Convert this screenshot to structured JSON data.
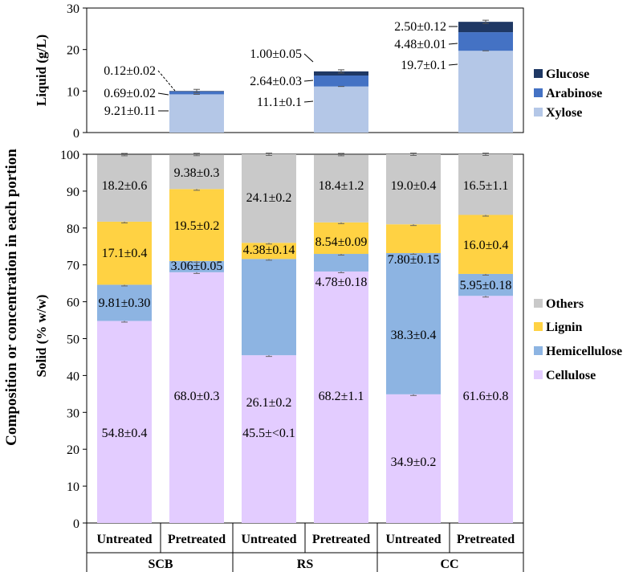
{
  "figure": {
    "ylabel_outer": "Composition or concentration in each portion",
    "colors": {
      "glucose": "#1f3864",
      "arabinose": "#4472c4",
      "xylose": "#b4c7e7",
      "others": "#c9c9c9",
      "lignin": "#ffd243",
      "hemicellulose": "#8db4e2",
      "cellulose": "#e3ccff"
    }
  },
  "chart_data": [
    {
      "type": "bar",
      "stacked": true,
      "ylabel": "Liquid (g/L)",
      "ylim": [
        0,
        30
      ],
      "yticks": [
        0,
        10,
        20,
        30
      ],
      "categories": [
        "SCB Pretreated",
        "RS Pretreated",
        "CC Pretreated"
      ],
      "series": [
        {
          "name": "Xylose",
          "key": "xylose",
          "values": [
            9.21,
            11.1,
            19.7
          ],
          "labels": [
            "9.21±0.11",
            "11.1±0.1",
            "19.7±0.1"
          ]
        },
        {
          "name": "Arabinose",
          "key": "arabinose",
          "values": [
            0.69,
            2.64,
            4.48
          ],
          "labels": [
            "0.69±0.02",
            "2.64±0.03",
            "4.48±0.01"
          ]
        },
        {
          "name": "Glucose",
          "key": "glucose",
          "values": [
            0.12,
            1.0,
            2.5
          ],
          "labels": [
            "0.12±0.02",
            "1.00±0.05",
            "2.50±0.12"
          ]
        }
      ],
      "legend": [
        "Glucose",
        "Arabinose",
        "Xylose"
      ]
    },
    {
      "type": "bar",
      "stacked": true,
      "ylabel": "Solid  (% w/w)",
      "ylim": [
        0,
        100
      ],
      "yticks": [
        0,
        10,
        20,
        30,
        40,
        50,
        60,
        70,
        80,
        90,
        100
      ],
      "groups": [
        "SCB",
        "RS",
        "CC"
      ],
      "categories": [
        "Untreated",
        "Pretreated",
        "Untreated",
        "Pretreated",
        "Untreated",
        "Pretreated"
      ],
      "series": [
        {
          "name": "Cellulose",
          "key": "cellulose",
          "values": [
            54.8,
            68.0,
            45.5,
            68.2,
            34.9,
            61.6
          ],
          "labels": [
            "54.8±0.4",
            "68.0±0.3",
            "45.5±<0.1",
            "68.2±1.1",
            "34.9±0.2",
            "61.6±0.8"
          ]
        },
        {
          "name": "Hemicellulose",
          "key": "hemicellulose",
          "values": [
            9.81,
            3.06,
            26.1,
            4.78,
            38.3,
            5.95
          ],
          "labels": [
            "9.81±0.30",
            "3.06±0.05",
            "26.1±0.2",
            "4.78±0.18",
            "38.3±0.4",
            "5.95±0.18"
          ]
        },
        {
          "name": "Lignin",
          "key": "lignin",
          "values": [
            17.1,
            19.5,
            4.38,
            8.54,
            7.8,
            16.0
          ],
          "labels": [
            "17.1±0.4",
            "19.5±0.2",
            "4.38±0.14",
            "8.54±0.09",
            "7.80±0.15",
            "16.0±0.4"
          ]
        },
        {
          "name": "Others",
          "key": "others",
          "values": [
            18.2,
            9.38,
            24.1,
            18.4,
            19.0,
            16.5
          ],
          "labels": [
            "18.2±0.6",
            "9.38±0.3",
            "24.1±0.2",
            "18.4±1.2",
            "19.0±0.4",
            "16.5±1.1"
          ]
        }
      ],
      "legend": [
        "Others",
        "Lignin",
        "Hemicellulose",
        "Cellulose"
      ]
    }
  ]
}
